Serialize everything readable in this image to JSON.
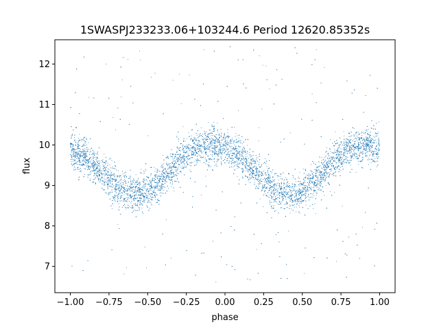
{
  "chart_data": {
    "type": "scatter",
    "title": "1SWASPJ233233.06+103244.6 Period 12620.85352s",
    "xlabel": "phase",
    "ylabel": "flux",
    "xlim": [
      -1.1,
      1.1
    ],
    "ylim": [
      6.35,
      12.6
    ],
    "xticks": [
      -1.0,
      -0.75,
      -0.5,
      -0.25,
      0.0,
      0.25,
      0.5,
      0.75,
      1.0
    ],
    "xtick_labels": [
      "−1.00",
      "−0.75",
      "−0.50",
      "−0.25",
      "0.00",
      "0.25",
      "0.50",
      "0.75",
      "1.00"
    ],
    "yticks": [
      7,
      8,
      9,
      10,
      11,
      12
    ],
    "ytick_labels": [
      "7",
      "8",
      "9",
      "10",
      "11",
      "12"
    ],
    "grid": false,
    "legend": "none",
    "point_color": "#1f77b4",
    "series": [
      {
        "x": [
          -1.0,
          -0.9,
          -0.8,
          -0.75,
          -0.7,
          -0.6,
          -0.55,
          -0.5,
          -0.4,
          -0.3,
          -0.25,
          -0.2,
          -0.1,
          -0.05,
          0.0,
          0.1,
          0.2,
          0.25,
          0.3,
          0.4,
          0.45,
          0.5,
          0.6,
          0.7,
          0.75,
          0.8,
          0.9,
          0.95,
          1.0
        ],
        "y": [
          9.85,
          9.7,
          9.35,
          9.15,
          8.95,
          8.8,
          8.78,
          8.82,
          9.15,
          9.6,
          9.75,
          9.9,
          10.0,
          10.0,
          9.95,
          9.7,
          9.35,
          9.15,
          8.95,
          8.8,
          8.78,
          8.82,
          9.15,
          9.6,
          9.75,
          9.9,
          10.0,
          10.0,
          9.95
        ]
      }
    ]
  }
}
